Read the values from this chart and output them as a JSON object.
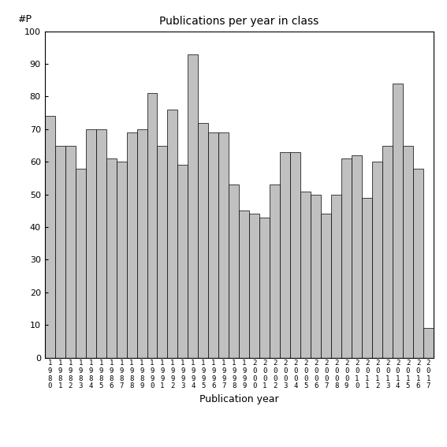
{
  "title": "Publications per year in class",
  "xlabel": "Publication year",
  "ylabel": "#P",
  "bar_color": "#c0c0c0",
  "edge_color": "#000000",
  "ylim": [
    0,
    100
  ],
  "yticks": [
    0,
    10,
    20,
    30,
    40,
    50,
    60,
    70,
    80,
    90,
    100
  ],
  "years": [
    "1980",
    "1981",
    "1982",
    "1983",
    "1984",
    "1985",
    "1986",
    "1987",
    "1988",
    "1989",
    "1990",
    "1991",
    "1992",
    "1993",
    "1994",
    "1995",
    "1996",
    "1997",
    "1998",
    "1999",
    "2000",
    "2001",
    "2002",
    "2003",
    "2004",
    "2005",
    "2006",
    "2007",
    "2008",
    "2009",
    "2010",
    "2011",
    "2012",
    "2013",
    "2014",
    "2015",
    "2016",
    "2017"
  ],
  "values": [
    74,
    65,
    65,
    58,
    70,
    70,
    61,
    60,
    69,
    70,
    81,
    65,
    76,
    59,
    93,
    72,
    69,
    69,
    53,
    45,
    44,
    43,
    53,
    63,
    63,
    51,
    50,
    44,
    50,
    61,
    62,
    49,
    60,
    65,
    84,
    65,
    58,
    9
  ],
  "figsize": [
    5.67,
    5.67
  ],
  "dpi": 100
}
